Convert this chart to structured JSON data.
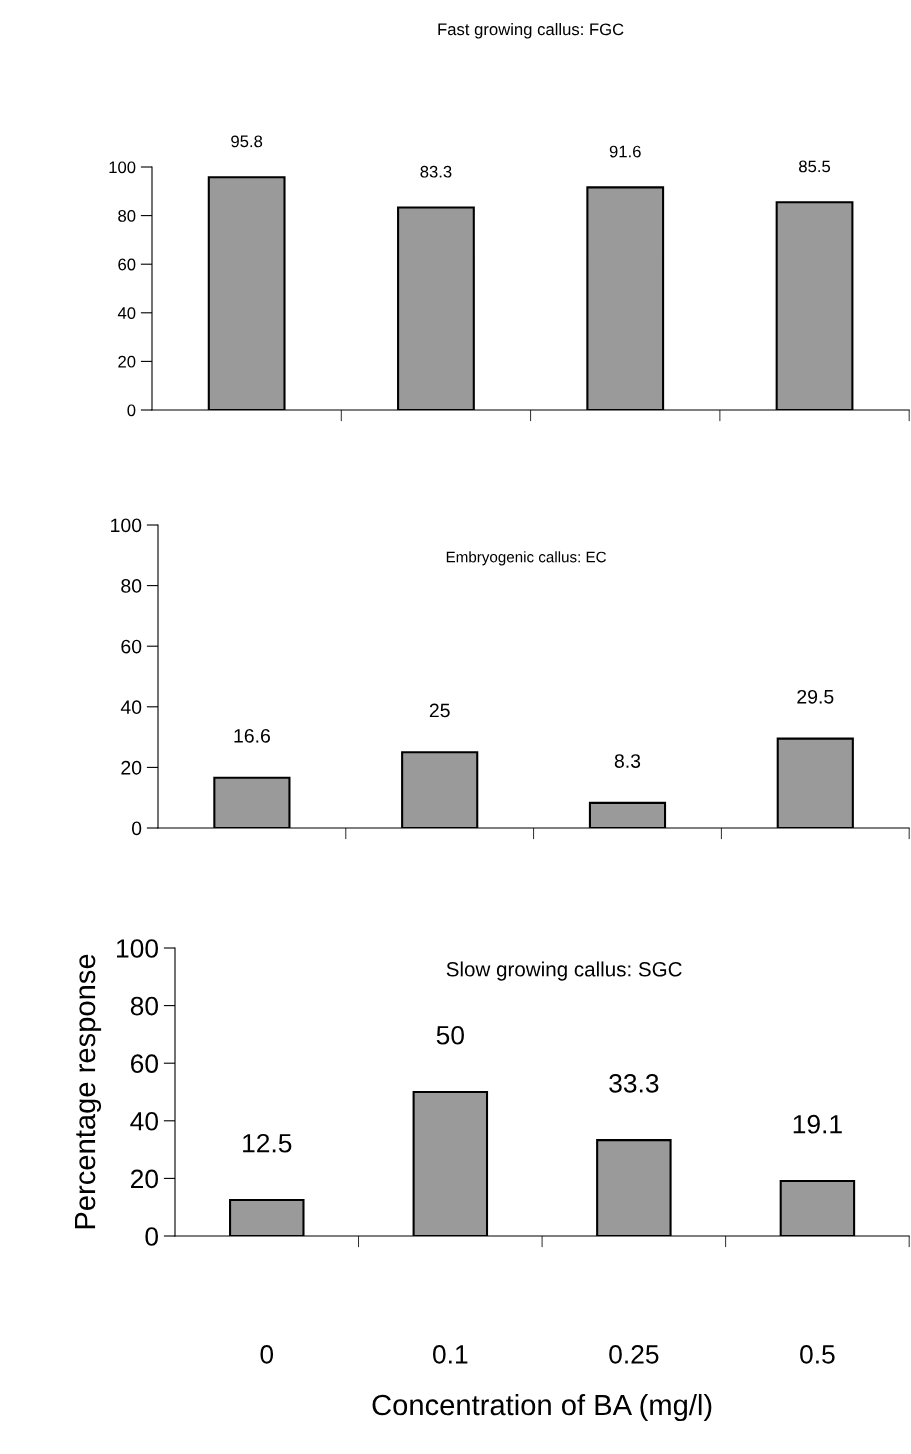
{
  "chart_data": [
    {
      "type": "bar",
      "title": "Fast growing callus: FGC",
      "categories": [
        "0",
        "0.1",
        "0.25",
        "0.5"
      ],
      "values": [
        95.8,
        83.3,
        91.6,
        85.5
      ],
      "color": "#9a9a9a",
      "ylim": [
        0,
        100
      ],
      "yticks": [
        0,
        20,
        40,
        60,
        80,
        100
      ],
      "data_labels": true,
      "tick_labels": "y",
      "grid": false
    },
    {
      "type": "bar",
      "title": "Embryogenic callus: EC",
      "categories": [
        "0",
        "0.1",
        "0.25",
        "0.5"
      ],
      "values": [
        16.6,
        25,
        8.3,
        29.5
      ],
      "color": "#9a9a9a",
      "ylim": [
        0,
        100
      ],
      "yticks": [
        0,
        20,
        40,
        60,
        80,
        100
      ],
      "data_labels": true,
      "tick_labels": "y",
      "grid": false
    },
    {
      "type": "bar",
      "title": "Slow growing callus: SGC",
      "categories": [
        "0",
        "0.1",
        "0.25",
        "0.5"
      ],
      "values": [
        12.5,
        50,
        33.3,
        19.1
      ],
      "color": "#9a9a9a",
      "ylim": [
        0,
        100
      ],
      "yticks": [
        0,
        20,
        40,
        60,
        80,
        100
      ],
      "data_labels": true,
      "xlabel": "Concentration of BA (mg/l)",
      "ylabel": "Percentage response",
      "grid": false
    }
  ]
}
